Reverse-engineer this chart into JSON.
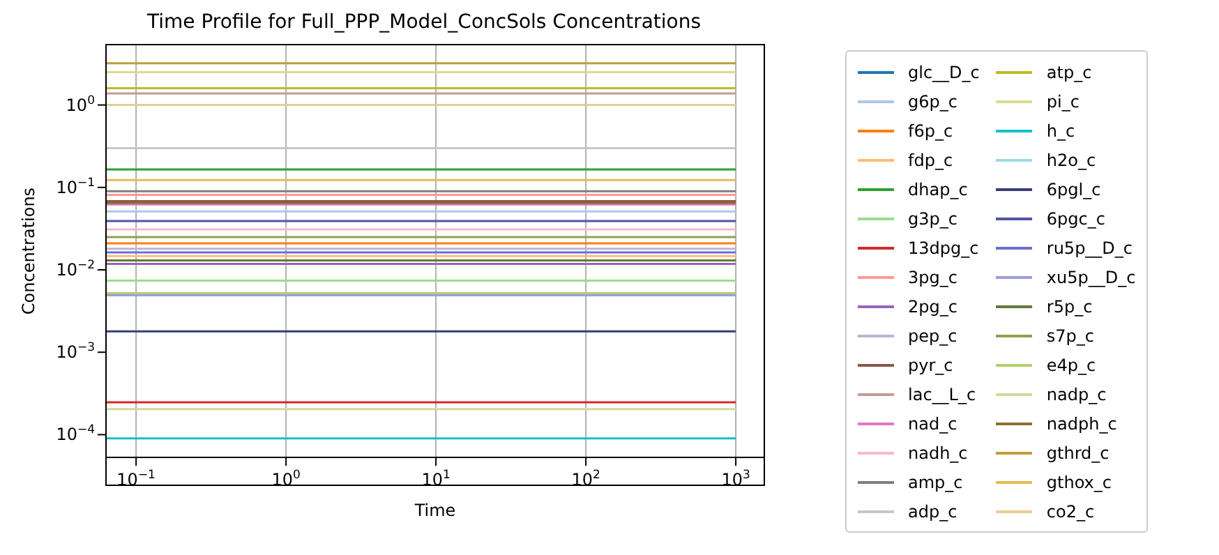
{
  "chart_data": {
    "type": "line",
    "title": "Time Profile for Full_PPP_Model_ConcSols Concentrations",
    "xlabel": "Time",
    "ylabel": "Concentrations",
    "log": "xy",
    "grid": "x",
    "legend": "right",
    "line_style": "solid",
    "marker": "none",
    "xlim": [
      0.063,
      1550
    ],
    "ylim": [
      5.3e-05,
      5.4
    ],
    "xticks": [
      {
        "value": 0.1,
        "label": "10$^{−1}$"
      },
      {
        "value": 1,
        "label": "10$^{0}$"
      },
      {
        "value": 10,
        "label": "10$^{1}$"
      },
      {
        "value": 100,
        "label": "10$^{2}$"
      },
      {
        "value": 1000,
        "label": "10$^{3}$"
      }
    ],
    "yticks": [
      {
        "value": 0.0001,
        "label": "10$^{−4}$"
      },
      {
        "value": 0.001,
        "label": "10$^{−3}$"
      },
      {
        "value": 0.01,
        "label": "10$^{−2}$"
      },
      {
        "value": 0.1,
        "label": "10$^{−1}$"
      },
      {
        "value": 1,
        "label": "10$^{0}$"
      }
    ],
    "x": [
      0.063,
      1000
    ],
    "series": [
      {
        "name": "glc__D_c",
        "color": "#1f77b4",
        "values": [
          null,
          null
        ]
      },
      {
        "name": "g6p_c",
        "color": "#aec7e8",
        "values": [
          0.051,
          0.051
        ]
      },
      {
        "name": "f6p_c",
        "color": "#ff7f0e",
        "values": [
          0.021,
          0.021
        ]
      },
      {
        "name": "fdp_c",
        "color": "#ffbb78",
        "values": [
          0.0147,
          0.0147
        ]
      },
      {
        "name": "dhap_c",
        "color": "#2ca02c",
        "values": [
          0.165,
          0.165
        ]
      },
      {
        "name": "g3p_c",
        "color": "#98df8a",
        "values": [
          0.0074,
          0.0074
        ]
      },
      {
        "name": "13dpg_c",
        "color": "#d62728",
        "values": [
          0.000247,
          0.000247
        ]
      },
      {
        "name": "3pg_c",
        "color": "#ff9896",
        "values": [
          0.081,
          0.081
        ]
      },
      {
        "name": "2pg_c",
        "color": "#9467bd",
        "values": [
          0.0118,
          0.0118
        ]
      },
      {
        "name": "pep_c",
        "color": "#c5b0d5",
        "values": [
          0.018,
          0.018
        ]
      },
      {
        "name": "pyr_c",
        "color": "#8c564b",
        "values": [
          0.068,
          0.068
        ]
      },
      {
        "name": "lac__L_c",
        "color": "#c49c94",
        "values": [
          1.38,
          1.38
        ]
      },
      {
        "name": "nad_c",
        "color": "#e377c2",
        "values": [
          0.062,
          0.062
        ]
      },
      {
        "name": "nadh_c",
        "color": "#f7b6d2",
        "values": [
          0.031,
          0.031
        ]
      },
      {
        "name": "amp_c",
        "color": "#7f7f7f",
        "values": [
          0.09,
          0.09
        ]
      },
      {
        "name": "adp_c",
        "color": "#c7c7c7",
        "values": [
          0.3,
          0.3
        ]
      },
      {
        "name": "atp_c",
        "color": "#bcbd22",
        "values": [
          1.6,
          1.6
        ]
      },
      {
        "name": "pi_c",
        "color": "#dbdb8d",
        "values": [
          2.5,
          2.5
        ]
      },
      {
        "name": "h_c",
        "color": "#17becf",
        "values": [
          9e-05,
          9e-05
        ]
      },
      {
        "name": "h2o_c",
        "color": "#9edae5",
        "values": [
          null,
          null
        ]
      },
      {
        "name": "6pgl_c",
        "color": "#393b79",
        "values": [
          0.00179,
          0.00179
        ]
      },
      {
        "name": "6pgc_c",
        "color": "#5254a3",
        "values": [
          0.039,
          0.039
        ]
      },
      {
        "name": "ru5p__D_c",
        "color": "#6b6ecf",
        "values": [
          0.0163,
          0.0163
        ]
      },
      {
        "name": "xu5p__D_c",
        "color": "#9c9ede",
        "values": [
          0.0049,
          0.0049
        ]
      },
      {
        "name": "r5p_c",
        "color": "#637939",
        "values": [
          0.013,
          0.013
        ]
      },
      {
        "name": "s7p_c",
        "color": "#8ca252",
        "values": [
          0.025,
          0.025
        ]
      },
      {
        "name": "e4p_c",
        "color": "#b5cf6b",
        "values": [
          0.0052,
          0.0052
        ]
      },
      {
        "name": "nadp_c",
        "color": "#cedb9c",
        "values": [
          0.000204,
          0.000204
        ]
      },
      {
        "name": "nadph_c",
        "color": "#8c6d31",
        "values": [
          0.065,
          0.065
        ]
      },
      {
        "name": "gthrd_c",
        "color": "#bd9e39",
        "values": [
          3.2,
          3.2
        ]
      },
      {
        "name": "gthox_c",
        "color": "#e7ba52",
        "values": [
          0.123,
          0.123
        ]
      },
      {
        "name": "co2_c",
        "color": "#e7cb94",
        "values": [
          1.0,
          1.0
        ]
      }
    ]
  }
}
